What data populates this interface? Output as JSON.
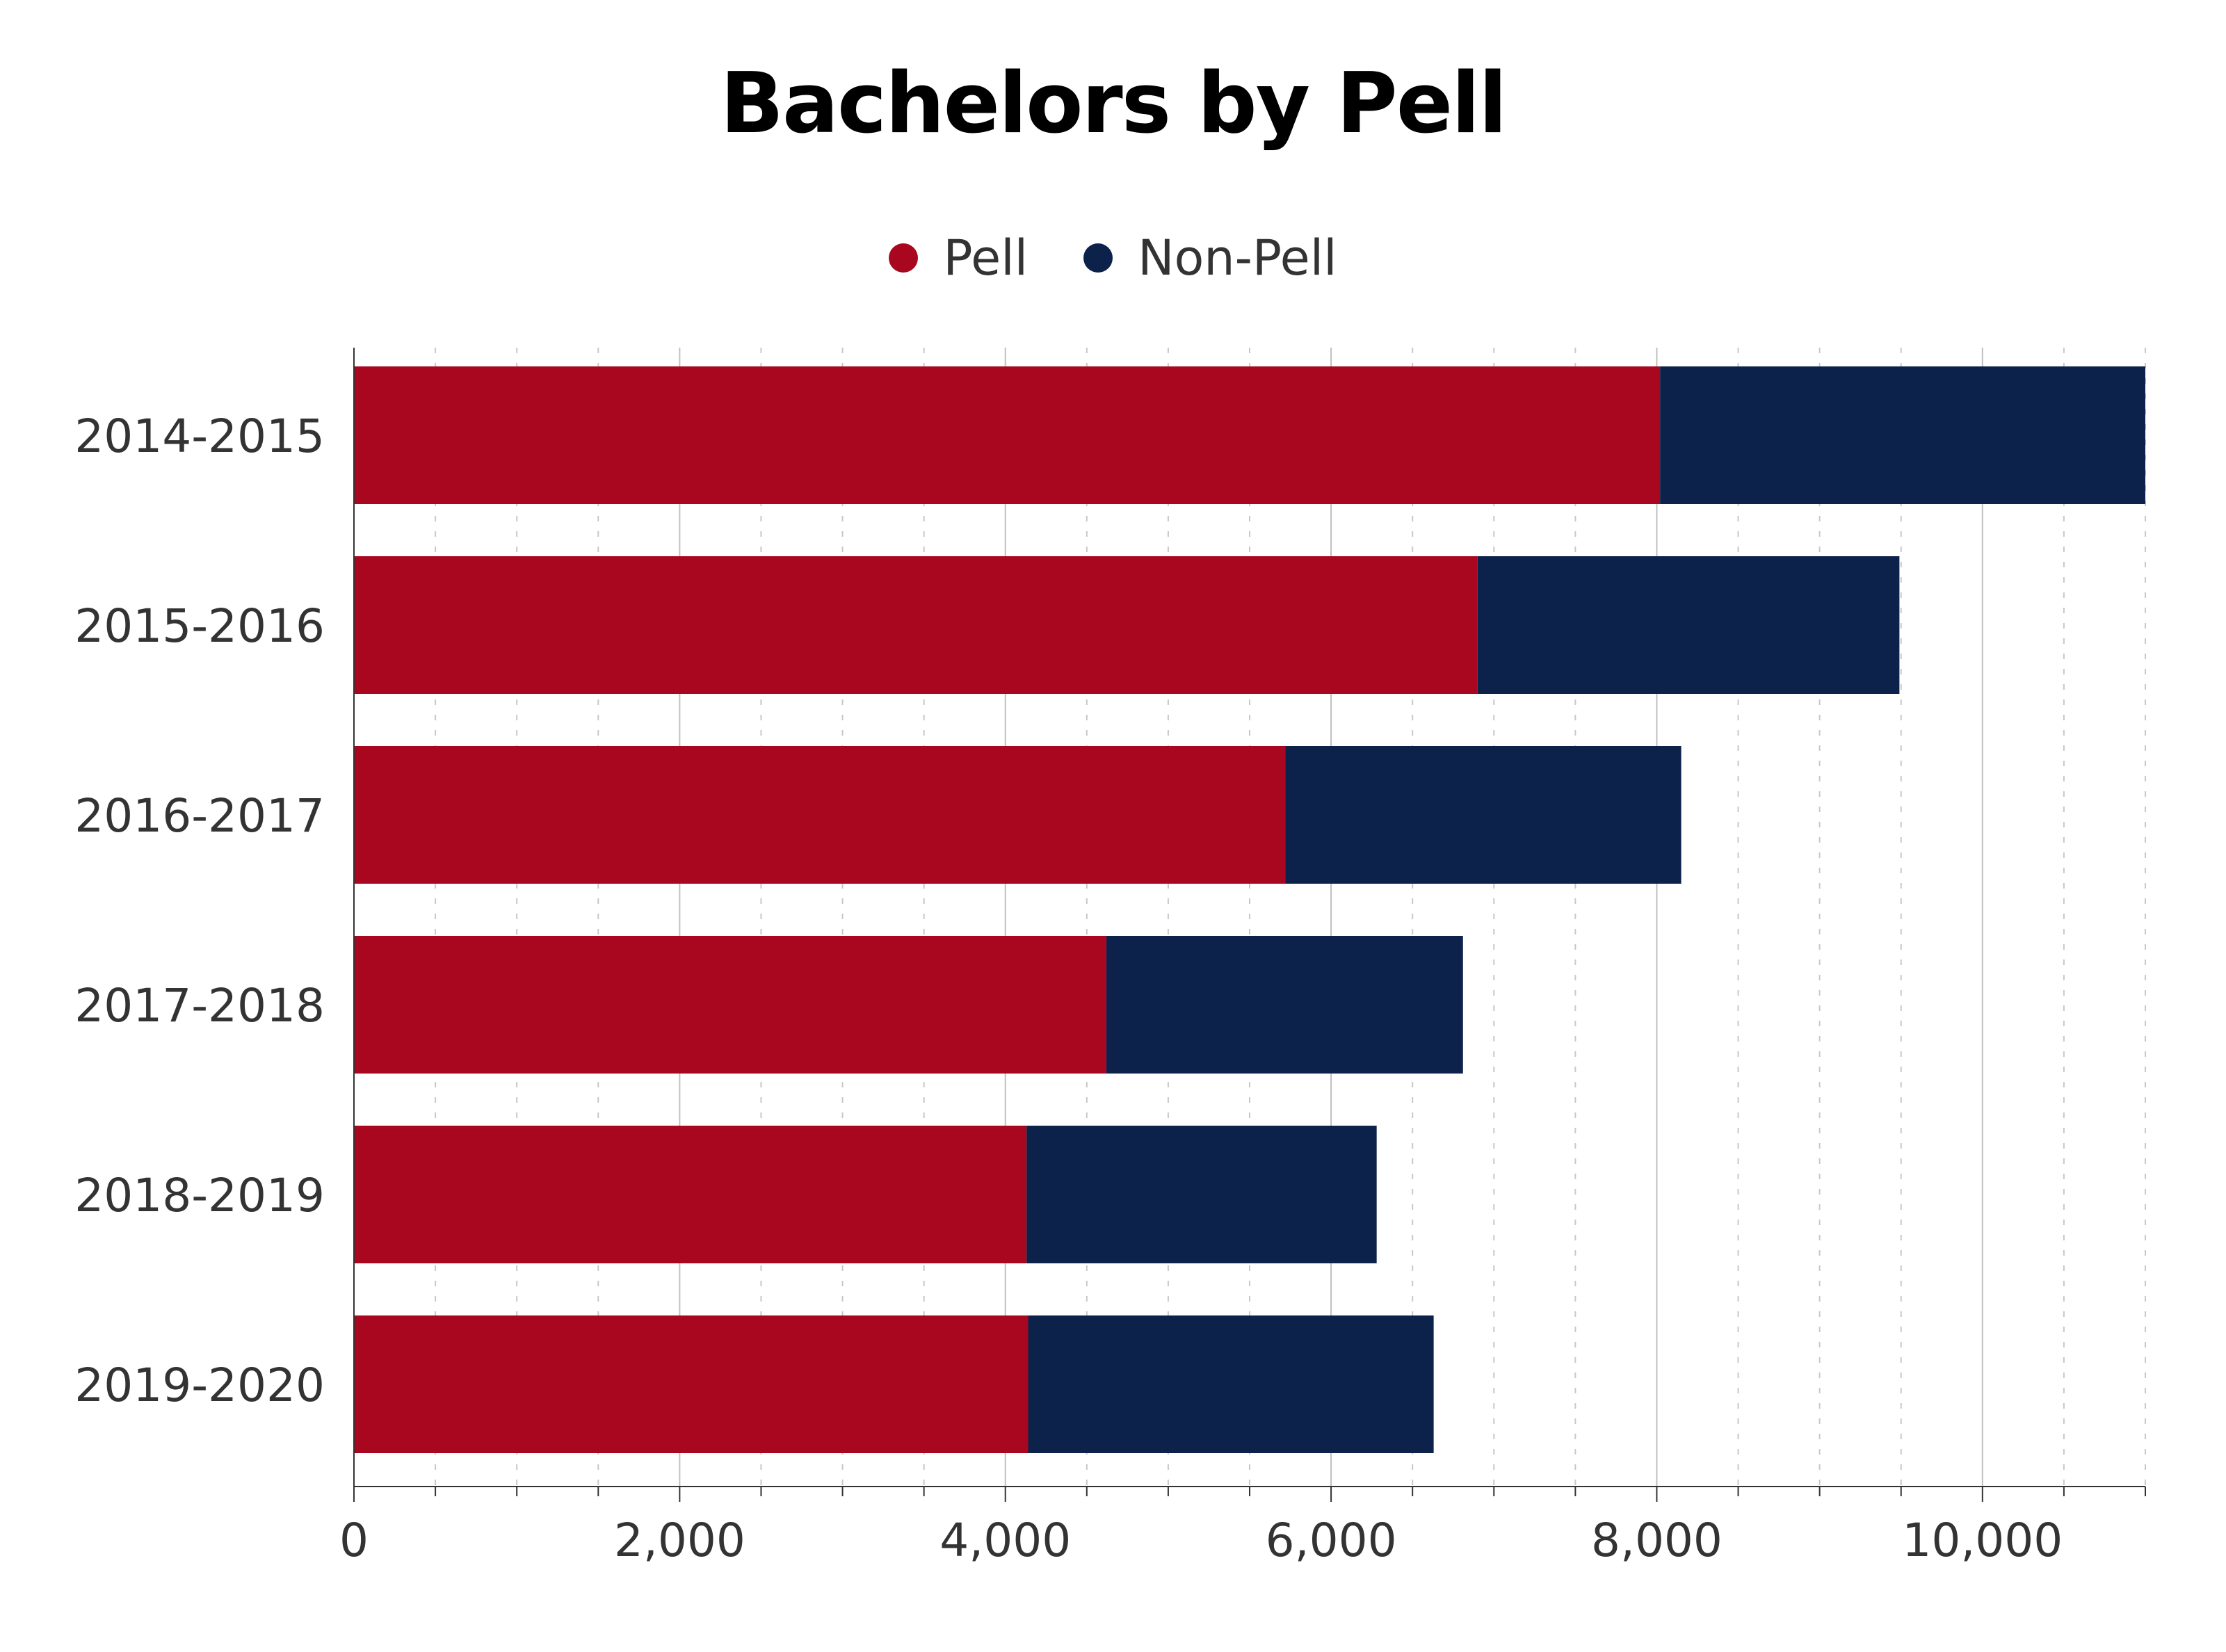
{
  "title": "Bachelors by Pell",
  "colors": {
    "pell": "#A8071F",
    "non_pell": "#0D224B",
    "grid_major": "#bfbfbf",
    "grid_minor": "#c8c8c8",
    "axis": "#333333",
    "text": "#333333"
  },
  "legend": [
    {
      "label": "Pell",
      "color": "#A8071F"
    },
    {
      "label": "Non-Pell",
      "color": "#0D224B"
    }
  ],
  "chart_data": {
    "type": "bar",
    "orientation": "horizontal",
    "stacked": true,
    "title": "Bachelors by Pell",
    "xlabel": "",
    "ylabel": "",
    "categories": [
      "2014-2015",
      "2015-2016",
      "2016-2017",
      "2017-2018",
      "2018-2019",
      "2019-2020"
    ],
    "series": [
      {
        "name": "Pell",
        "values": [
          8020,
          6900,
          5720,
          4620,
          4130,
          4140
        ]
      },
      {
        "name": "Non-Pell",
        "values": [
          2980,
          2590,
          2430,
          2190,
          2150,
          2490
        ]
      }
    ],
    "xlim": [
      0,
      11000
    ],
    "xticks": [
      0,
      2000,
      4000,
      6000,
      8000,
      10000
    ],
    "xtick_labels": [
      "0",
      "2,000",
      "4,000",
      "6,000",
      "8,000",
      "10,000"
    ],
    "grid": true,
    "legend_position": "top-center"
  }
}
